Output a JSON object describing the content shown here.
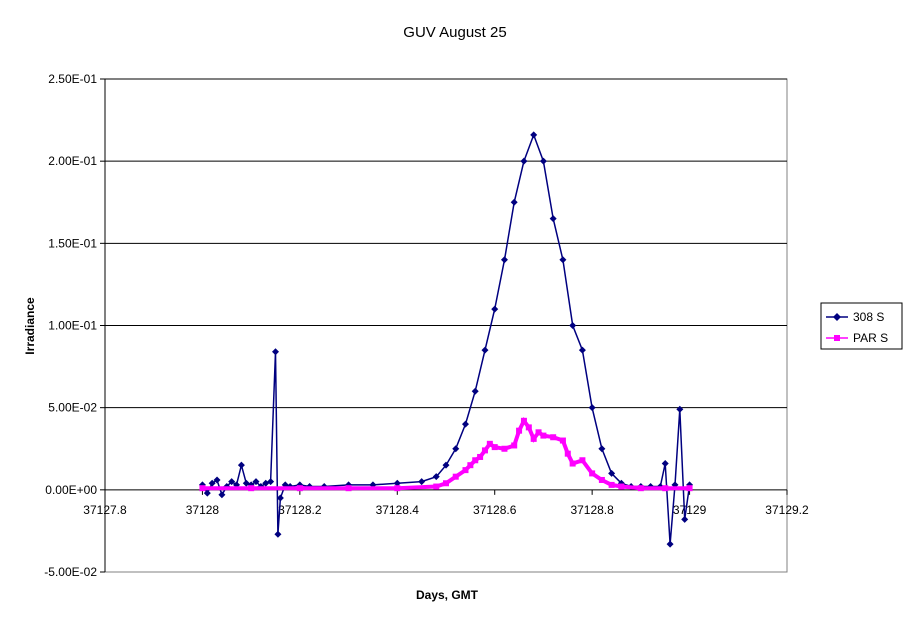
{
  "chart_data": {
    "type": "scatter",
    "title": "GUV August 25",
    "xlabel": "Days, GMT",
    "ylabel": "Irradiance",
    "xlim": [
      37127.8,
      37129.2
    ],
    "ylim": [
      -0.05,
      0.25
    ],
    "x_ticks": [
      "37127.8",
      "37128",
      "37128.2",
      "37128.4",
      "37128.6",
      "37128.8",
      "37129",
      "37129.2"
    ],
    "y_ticks": [
      "-5.00E-02",
      "0.00E+00",
      "5.00E-02",
      "1.00E-01",
      "1.50E-01",
      "2.00E-01",
      "2.50E-01"
    ],
    "x_tick_values": [
      37127.8,
      37128.0,
      37128.2,
      37128.4,
      37128.6,
      37128.8,
      37129.0,
      37129.2
    ],
    "y_tick_values": [
      -0.05,
      0.0,
      0.05,
      0.1,
      0.15,
      0.2,
      0.25
    ],
    "grid": "horizontal major gridlines",
    "legend_position": "right",
    "series": [
      {
        "name": "308 S",
        "color": "#000080",
        "marker": "diamond",
        "x": [
          37128.0,
          37128.01,
          37128.02,
          37128.03,
          37128.04,
          37128.05,
          37128.06,
          37128.07,
          37128.08,
          37128.09,
          37128.1,
          37128.11,
          37128.12,
          37128.13,
          37128.14,
          37128.15,
          37128.155,
          37128.16,
          37128.17,
          37128.18,
          37128.2,
          37128.22,
          37128.25,
          37128.3,
          37128.35,
          37128.4,
          37128.45,
          37128.48,
          37128.5,
          37128.52,
          37128.54,
          37128.56,
          37128.58,
          37128.6,
          37128.62,
          37128.64,
          37128.66,
          37128.68,
          37128.7,
          37128.72,
          37128.74,
          37128.76,
          37128.78,
          37128.8,
          37128.82,
          37128.84,
          37128.86,
          37128.88,
          37128.9,
          37128.92,
          37128.94,
          37128.95,
          37128.96,
          37128.97,
          37128.98,
          37128.99,
          37129.0
        ],
        "y": [
          0.003,
          -0.002,
          0.004,
          0.006,
          -0.003,
          0.002,
          0.005,
          0.003,
          0.015,
          0.004,
          0.003,
          0.005,
          0.002,
          0.004,
          0.005,
          0.084,
          -0.027,
          -0.005,
          0.003,
          0.002,
          0.003,
          0.002,
          0.002,
          0.003,
          0.003,
          0.004,
          0.005,
          0.008,
          0.015,
          0.025,
          0.04,
          0.06,
          0.085,
          0.11,
          0.14,
          0.175,
          0.2,
          0.216,
          0.2,
          0.165,
          0.14,
          0.1,
          0.085,
          0.05,
          0.025,
          0.01,
          0.004,
          0.002,
          0.002,
          0.002,
          0.002,
          0.016,
          -0.033,
          0.003,
          0.049,
          -0.018,
          0.003
        ]
      },
      {
        "name": "PAR S",
        "color": "#ff00ff",
        "marker": "square",
        "x": [
          37128.0,
          37128.1,
          37128.2,
          37128.3,
          37128.4,
          37128.48,
          37128.5,
          37128.52,
          37128.54,
          37128.55,
          37128.56,
          37128.57,
          37128.58,
          37128.59,
          37128.6,
          37128.62,
          37128.64,
          37128.65,
          37128.66,
          37128.67,
          37128.68,
          37128.69,
          37128.7,
          37128.72,
          37128.74,
          37128.75,
          37128.76,
          37128.78,
          37128.8,
          37128.82,
          37128.84,
          37128.86,
          37128.9,
          37128.95,
          37129.0
        ],
        "y": [
          0.001,
          0.001,
          0.001,
          0.001,
          0.001,
          0.002,
          0.004,
          0.008,
          0.012,
          0.015,
          0.018,
          0.02,
          0.024,
          0.028,
          0.026,
          0.025,
          0.027,
          0.036,
          0.042,
          0.038,
          0.031,
          0.035,
          0.033,
          0.032,
          0.03,
          0.022,
          0.016,
          0.018,
          0.01,
          0.006,
          0.003,
          0.002,
          0.001,
          0.001,
          0.001
        ]
      }
    ]
  }
}
